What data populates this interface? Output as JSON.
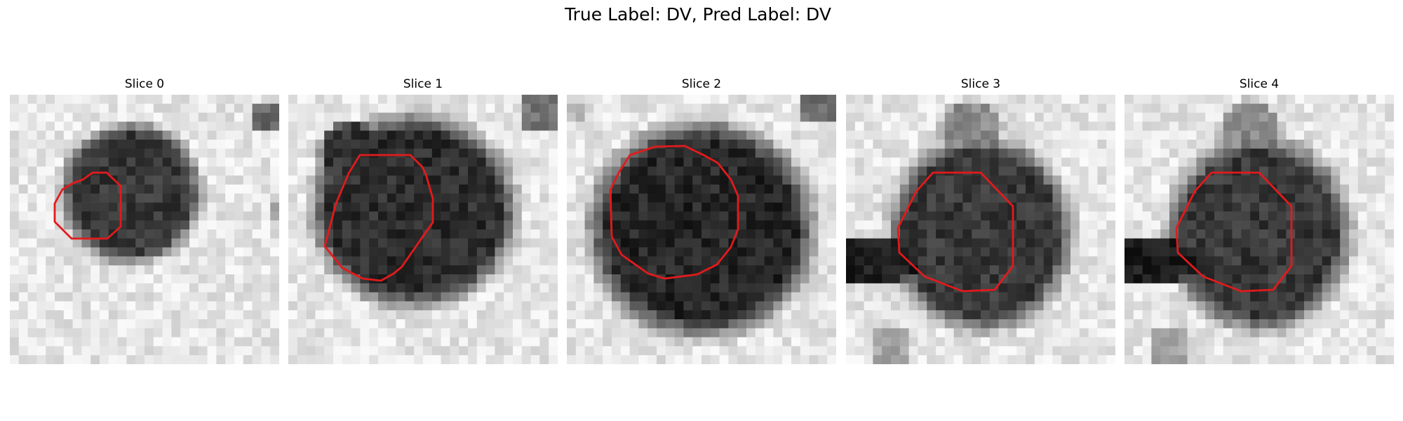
{
  "figure": {
    "title": "True Label: DV, Pred Label: DV",
    "contour_color": "#e31a1c"
  },
  "slices": [
    {
      "title": "Slice 0"
    },
    {
      "title": "Slice 1"
    },
    {
      "title": "Slice 2"
    },
    {
      "title": "Slice 3"
    },
    {
      "title": "Slice 4"
    }
  ]
}
